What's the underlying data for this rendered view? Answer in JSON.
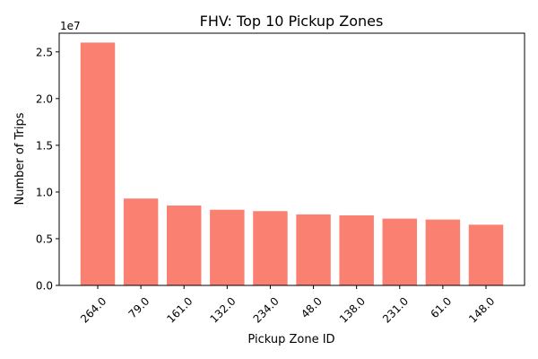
{
  "chart_data": {
    "type": "bar",
    "title": "FHV: Top 10 Pickup Zones",
    "xlabel": "Pickup Zone ID",
    "ylabel": "Number of Trips",
    "y_offset_label": "1e7",
    "categories": [
      "264.0",
      "79.0",
      "161.0",
      "132.0",
      "234.0",
      "48.0",
      "138.0",
      "231.0",
      "61.0",
      "148.0"
    ],
    "values": [
      26000000,
      9300000,
      8550000,
      8100000,
      7950000,
      7600000,
      7500000,
      7150000,
      7050000,
      6500000
    ],
    "ylim": [
      0,
      27000000
    ],
    "yticks": [
      0,
      5000000,
      10000000,
      15000000,
      20000000,
      25000000
    ],
    "ytick_labels": [
      "0.0",
      "0.5",
      "1.0",
      "1.5",
      "2.0",
      "2.5"
    ],
    "bar_color": "#fa8072",
    "grid": false,
    "legend": "none"
  }
}
